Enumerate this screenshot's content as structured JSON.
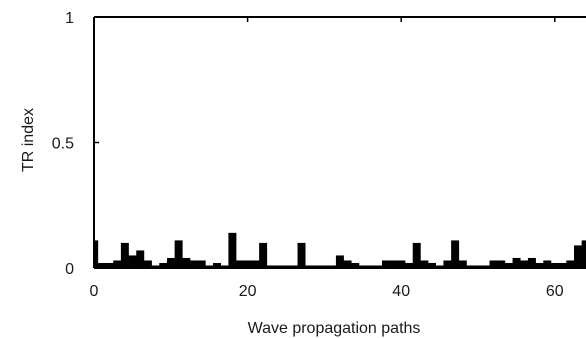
{
  "chart_data": {
    "type": "bar",
    "xlabel": "Wave propagation paths",
    "ylabel": "TR index",
    "xlim": [
      0,
      64
    ],
    "ylim": [
      0,
      1
    ],
    "xticks": [
      0,
      20,
      40,
      60
    ],
    "yticks": [
      0,
      0.5,
      1
    ],
    "ytick_labels": [
      "0",
      "0.5",
      "1"
    ],
    "grid": false,
    "bar_color": "#000000",
    "x": [
      0,
      1,
      2,
      3,
      4,
      5,
      6,
      7,
      8,
      9,
      10,
      11,
      12,
      13,
      14,
      15,
      16,
      17,
      18,
      19,
      20,
      21,
      22,
      23,
      24,
      25,
      26,
      27,
      28,
      29,
      30,
      31,
      32,
      33,
      34,
      35,
      36,
      37,
      38,
      39,
      40,
      41,
      42,
      43,
      44,
      45,
      46,
      47,
      48,
      49,
      50,
      51,
      52,
      53,
      54,
      55,
      56,
      57,
      58,
      59,
      60,
      61,
      62,
      63,
      64
    ],
    "values": [
      0.11,
      0.02,
      0.02,
      0.03,
      0.1,
      0.05,
      0.07,
      0.03,
      0.01,
      0.02,
      0.04,
      0.11,
      0.04,
      0.03,
      0.03,
      0.01,
      0.02,
      0.01,
      0.14,
      0.03,
      0.03,
      0.03,
      0.1,
      0.01,
      0.01,
      0.01,
      0.01,
      0.1,
      0.01,
      0.01,
      0.01,
      0.01,
      0.05,
      0.03,
      0.02,
      0.01,
      0.01,
      0.01,
      0.03,
      0.03,
      0.03,
      0.02,
      0.1,
      0.03,
      0.02,
      0.01,
      0.03,
      0.11,
      0.03,
      0.01,
      0.01,
      0.01,
      0.03,
      0.03,
      0.02,
      0.04,
      0.03,
      0.04,
      0.02,
      0.03,
      0.02,
      0.02,
      0.03,
      0.09,
      0.11
    ]
  }
}
